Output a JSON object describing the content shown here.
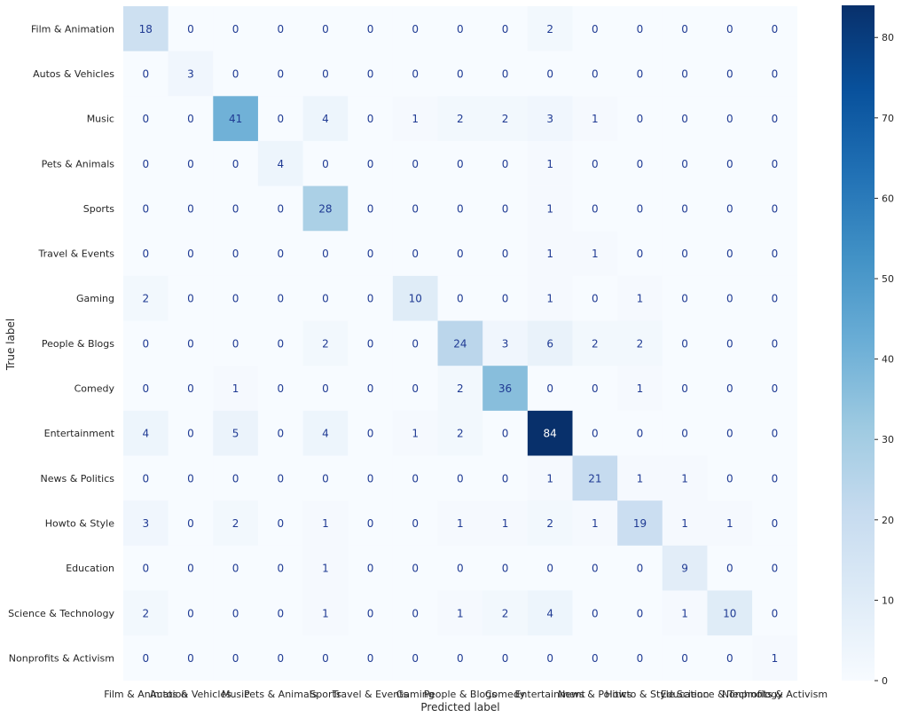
{
  "chart_data": {
    "type": "heatmap",
    "title": "",
    "xlabel": "Predicted label",
    "ylabel": "True label",
    "labels": [
      "Film & Animation",
      "Autos & Vehicles",
      "Music",
      "Pets & Animals",
      "Sports",
      "Travel & Events",
      "Gaming",
      "People & Blogs",
      "Comedy",
      "Entertainment",
      "News & Politics",
      "Howto & Style",
      "Education",
      "Science & Technology",
      "Nonprofits & Activism"
    ],
    "matrix": [
      [
        18,
        0,
        0,
        0,
        0,
        0,
        0,
        0,
        0,
        2,
        0,
        0,
        0,
        0,
        0
      ],
      [
        0,
        3,
        0,
        0,
        0,
        0,
        0,
        0,
        0,
        0,
        0,
        0,
        0,
        0,
        0
      ],
      [
        0,
        0,
        41,
        0,
        4,
        0,
        1,
        2,
        2,
        3,
        1,
        0,
        0,
        0,
        0
      ],
      [
        0,
        0,
        0,
        4,
        0,
        0,
        0,
        0,
        0,
        1,
        0,
        0,
        0,
        0,
        0
      ],
      [
        0,
        0,
        0,
        0,
        28,
        0,
        0,
        0,
        0,
        1,
        0,
        0,
        0,
        0,
        0
      ],
      [
        0,
        0,
        0,
        0,
        0,
        0,
        0,
        0,
        0,
        1,
        1,
        0,
        0,
        0,
        0
      ],
      [
        2,
        0,
        0,
        0,
        0,
        0,
        10,
        0,
        0,
        1,
        0,
        1,
        0,
        0,
        0
      ],
      [
        0,
        0,
        0,
        0,
        2,
        0,
        0,
        24,
        3,
        6,
        2,
        2,
        0,
        0,
        0
      ],
      [
        0,
        0,
        1,
        0,
        0,
        0,
        0,
        2,
        36,
        0,
        0,
        1,
        0,
        0,
        0
      ],
      [
        4,
        0,
        5,
        0,
        4,
        0,
        1,
        2,
        0,
        84,
        0,
        0,
        0,
        0,
        0
      ],
      [
        0,
        0,
        0,
        0,
        0,
        0,
        0,
        0,
        0,
        1,
        21,
        1,
        1,
        0,
        0
      ],
      [
        3,
        0,
        2,
        0,
        1,
        0,
        0,
        1,
        1,
        2,
        1,
        19,
        1,
        1,
        0
      ],
      [
        0,
        0,
        0,
        0,
        1,
        0,
        0,
        0,
        0,
        0,
        0,
        0,
        9,
        0,
        0
      ],
      [
        2,
        0,
        0,
        0,
        1,
        0,
        0,
        1,
        2,
        4,
        0,
        0,
        1,
        10,
        0
      ],
      [
        0,
        0,
        0,
        0,
        0,
        0,
        0,
        0,
        0,
        0,
        0,
        0,
        0,
        0,
        1
      ]
    ],
    "colorbar": {
      "ticks": [
        0,
        10,
        20,
        30,
        40,
        50,
        60,
        70,
        80
      ],
      "range": [
        0,
        84
      ],
      "colormap": "Blues",
      "low_color": "#f7fbff",
      "high_color": "#08306b"
    },
    "grid": false
  }
}
